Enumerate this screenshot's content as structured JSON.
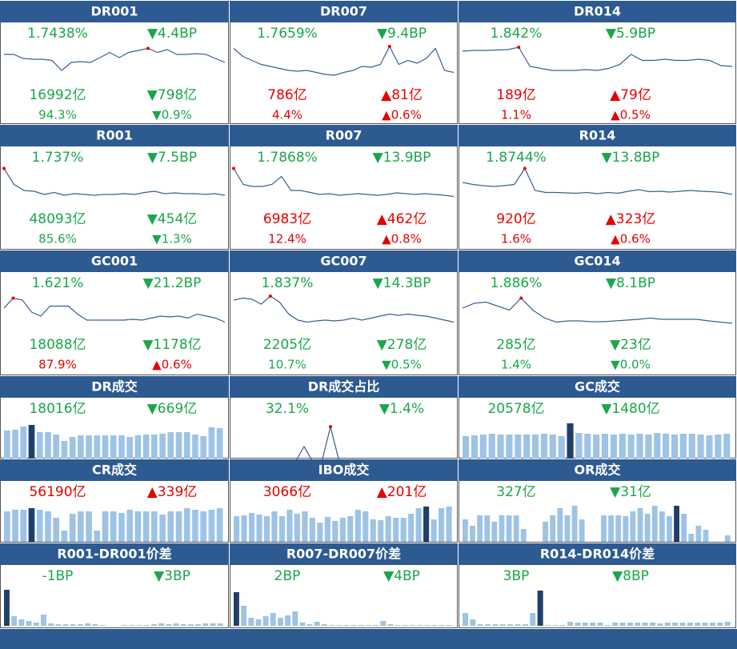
{
  "panels": [
    {
      "title": "DR001",
      "kind": "line",
      "highlight": 15,
      "stats": [
        {
          "text": "1.7438%",
          "color": "#1aa64a"
        },
        {
          "text": "▼4.4BP",
          "color": "#1aa64a"
        },
        {
          "text": "16992亿",
          "color": "#1aa64a"
        },
        {
          "text": "▼798亿",
          "color": "#1aa64a"
        },
        {
          "text": "94.3%",
          "color": "#1aa64a"
        },
        {
          "text": "▼0.9%",
          "color": "#1aa64a"
        }
      ],
      "values": [
        70,
        70,
        60,
        58,
        58,
        55,
        30,
        50,
        52,
        50,
        62,
        75,
        62,
        75,
        80,
        85,
        75,
        82,
        70,
        70,
        72,
        70,
        60,
        50
      ]
    },
    {
      "title": "DR007",
      "kind": "line",
      "highlight": 17,
      "stats": [
        {
          "text": "1.7659%",
          "color": "#1aa64a"
        },
        {
          "text": "▼9.4BP",
          "color": "#1aa64a"
        },
        {
          "text": "786亿",
          "color": "#e60000"
        },
        {
          "text": "▲81亿",
          "color": "#e60000"
        },
        {
          "text": "4.4%",
          "color": "#e60000"
        },
        {
          "text": "▲0.6%",
          "color": "#e60000"
        }
      ],
      "values": [
        85,
        65,
        55,
        45,
        40,
        35,
        30,
        28,
        30,
        25,
        20,
        18,
        25,
        30,
        40,
        38,
        45,
        90,
        45,
        55,
        48,
        60,
        85,
        30,
        25
      ]
    },
    {
      "title": "DR014",
      "kind": "line",
      "highlight": 5,
      "stats": [
        {
          "text": "1.842%",
          "color": "#1aa64a"
        },
        {
          "text": "▼5.9BP",
          "color": "#1aa64a"
        },
        {
          "text": "189亿",
          "color": "#e60000"
        },
        {
          "text": "▲79亿",
          "color": "#e60000"
        },
        {
          "text": "1.1%",
          "color": "#e60000"
        },
        {
          "text": "▲0.5%",
          "color": "#e60000"
        }
      ],
      "values": [
        78,
        80,
        80,
        81,
        82,
        88,
        40,
        35,
        30,
        30,
        30,
        32,
        30,
        35,
        45,
        70,
        55,
        55,
        58,
        55,
        55,
        58,
        55,
        42,
        40
      ]
    },
    {
      "title": "R001",
      "kind": "line",
      "highlight": 0,
      "stats": [
        {
          "text": "1.737%",
          "color": "#1aa64a"
        },
        {
          "text": "▼7.5BP",
          "color": "#1aa64a"
        },
        {
          "text": "48093亿",
          "color": "#1aa64a"
        },
        {
          "text": "▼454亿",
          "color": "#1aa64a"
        },
        {
          "text": "85.6%",
          "color": "#1aa64a"
        },
        {
          "text": "▼1.3%",
          "color": "#1aa64a"
        }
      ],
      "values": [
        95,
        55,
        40,
        38,
        30,
        35,
        28,
        32,
        30,
        28,
        30,
        30,
        32,
        30,
        35,
        38,
        32,
        34,
        32,
        32,
        30,
        32,
        28
      ]
    },
    {
      "title": "R007",
      "kind": "line",
      "highlight": 0,
      "stats": [
        {
          "text": "1.7868%",
          "color": "#1aa64a"
        },
        {
          "text": "▼13.9BP",
          "color": "#1aa64a"
        },
        {
          "text": "6983亿",
          "color": "#e60000"
        },
        {
          "text": "▲462亿",
          "color": "#e60000"
        },
        {
          "text": "12.4%",
          "color": "#e60000"
        },
        {
          "text": "▲0.8%",
          "color": "#e60000"
        }
      ],
      "values": [
        95,
        55,
        50,
        50,
        55,
        75,
        40,
        40,
        35,
        30,
        32,
        28,
        30,
        32,
        30,
        28,
        30,
        34,
        32,
        30,
        32,
        30,
        28,
        25
      ]
    },
    {
      "title": "R014",
      "kind": "line",
      "highlight": 6,
      "stats": [
        {
          "text": "1.8744%",
          "color": "#1aa64a"
        },
        {
          "text": "▼13.8BP",
          "color": "#1aa64a"
        },
        {
          "text": "920亿",
          "color": "#e60000"
        },
        {
          "text": "▲323亿",
          "color": "#e60000"
        },
        {
          "text": "1.6%",
          "color": "#e60000"
        },
        {
          "text": "▲0.6%",
          "color": "#e60000"
        }
      ],
      "values": [
        60,
        55,
        52,
        50,
        52,
        55,
        95,
        40,
        35,
        35,
        34,
        33,
        35,
        32,
        35,
        33,
        38,
        42,
        37,
        38,
        36,
        38,
        40,
        38,
        37,
        35,
        30
      ]
    },
    {
      "title": "GC001",
      "kind": "line",
      "highlight": 1,
      "stats": [
        {
          "text": "1.621%",
          "color": "#1aa64a"
        },
        {
          "text": "▼21.2BP",
          "color": "#1aa64a"
        },
        {
          "text": "18088亿",
          "color": "#1aa64a"
        },
        {
          "text": "▼1178亿",
          "color": "#1aa64a"
        },
        {
          "text": "87.9%",
          "color": "#e60000"
        },
        {
          "text": "▲0.6%",
          "color": "#e60000"
        }
      ],
      "values": [
        60,
        85,
        80,
        50,
        40,
        65,
        65,
        65,
        45,
        30,
        30,
        30,
        30,
        30,
        32,
        30,
        35,
        40,
        38,
        40,
        35,
        45,
        40,
        35,
        25
      ]
    },
    {
      "title": "GC007",
      "kind": "line",
      "highlight": 4,
      "stats": [
        {
          "text": "1.837%",
          "color": "#1aa64a"
        },
        {
          "text": "▼14.3BP",
          "color": "#1aa64a"
        },
        {
          "text": "2205亿",
          "color": "#1aa64a"
        },
        {
          "text": "▼278亿",
          "color": "#1aa64a"
        },
        {
          "text": "10.7%",
          "color": "#1aa64a"
        },
        {
          "text": "▼0.5%",
          "color": "#1aa64a"
        }
      ],
      "values": [
        80,
        85,
        82,
        70,
        90,
        75,
        45,
        30,
        25,
        28,
        30,
        28,
        30,
        35,
        30,
        35,
        40,
        45,
        42,
        45,
        42,
        40,
        35,
        30,
        25
      ]
    },
    {
      "title": "GC014",
      "kind": "line",
      "highlight": 5,
      "stats": [
        {
          "text": "1.886%",
          "color": "#1aa64a"
        },
        {
          "text": "▼8.1BP",
          "color": "#1aa64a"
        },
        {
          "text": "285亿",
          "color": "#1aa64a"
        },
        {
          "text": "▼23亿",
          "color": "#1aa64a"
        },
        {
          "text": "1.4%",
          "color": "#1aa64a"
        },
        {
          "text": "▼0.0%",
          "color": "#1aa64a"
        }
      ],
      "values": [
        60,
        72,
        75,
        65,
        55,
        85,
        55,
        35,
        25,
        28,
        28,
        26,
        26,
        28,
        30,
        32,
        35,
        32,
        32,
        32,
        32,
        28,
        25,
        22
      ]
    },
    {
      "title": "DR成交",
      "kind": "bar",
      "highlight": 3,
      "stats": [
        {
          "text": "18016亿",
          "color": "#1aa64a"
        },
        {
          "text": "▼669亿",
          "color": "#1aa64a"
        }
      ],
      "values": [
        35,
        36,
        40,
        42,
        33,
        33,
        30,
        22,
        27,
        29,
        29,
        29,
        29,
        29,
        29,
        27,
        29,
        30,
        30,
        31,
        33,
        33,
        33,
        30,
        28,
        39,
        38
      ]
    },
    {
      "title": "DR成交占比",
      "kind": "line",
      "highlight": 11,
      "stats": [
        {
          "text": "32.1%",
          "color": "#1aa64a"
        },
        {
          "text": "▼1.4%",
          "color": "#1aa64a"
        }
      ],
      "values": [
        5,
        5,
        3,
        3,
        5,
        5,
        4,
        5,
        40,
        5,
        5,
        85,
        5,
        3,
        3,
        3,
        3,
        3,
        4,
        3,
        3,
        4,
        5,
        3,
        5,
        5
      ]
    },
    {
      "title": "GC成交",
      "kind": "bar",
      "highlight": 12,
      "stats": [
        {
          "text": "20578亿",
          "color": "#1aa64a"
        },
        {
          "text": "▼1480亿",
          "color": "#1aa64a"
        }
      ],
      "values": [
        28,
        29,
        30,
        31,
        30,
        30,
        30,
        30,
        30,
        31,
        30,
        28,
        44,
        32,
        31,
        30,
        31,
        30,
        31,
        30,
        31,
        30,
        32,
        31,
        30,
        31,
        31,
        30,
        29,
        30,
        31
      ]
    },
    {
      "title": "CR成交",
      "kind": "bar",
      "highlight": 3,
      "stats": [
        {
          "text": "56190亿",
          "color": "#e60000"
        },
        {
          "text": "▲339亿",
          "color": "#e60000"
        }
      ],
      "values": [
        38,
        40,
        40,
        42,
        40,
        38,
        30,
        14,
        35,
        38,
        38,
        14,
        38,
        38,
        36,
        40,
        38,
        38,
        38,
        34,
        38,
        38,
        42,
        40,
        38,
        40,
        42
      ]
    },
    {
      "title": "IBO成交",
      "kind": "bar",
      "highlight": 25,
      "stats": [
        {
          "text": "3066亿",
          "color": "#e60000"
        },
        {
          "text": "▲201亿",
          "color": "#e60000"
        }
      ],
      "values": [
        32,
        33,
        36,
        34,
        32,
        38,
        32,
        40,
        35,
        38,
        30,
        24,
        31,
        26,
        30,
        32,
        40,
        38,
        28,
        27,
        32,
        30,
        30,
        35,
        42,
        44,
        28,
        42,
        44
      ]
    },
    {
      "title": "OR成交",
      "kind": "bar",
      "highlight": 29,
      "stats": [
        {
          "text": "327亿",
          "color": "#1aa64a"
        },
        {
          "text": "▼31亿",
          "color": "#1aa64a"
        }
      ],
      "values": [
        28,
        20,
        33,
        33,
        25,
        33,
        33,
        33,
        16,
        0,
        0,
        25,
        33,
        42,
        33,
        45,
        28,
        0,
        0,
        33,
        33,
        33,
        32,
        38,
        42,
        35,
        45,
        38,
        32,
        45,
        35,
        10,
        20,
        15,
        0,
        0,
        8
      ]
    },
    {
      "title": "R001-DR001价差",
      "kind": "bar",
      "highlight": 0,
      "stats": [
        {
          "text": "-1BP",
          "color": "#1aa64a"
        },
        {
          "text": "▼3BP",
          "color": "#1aa64a"
        }
      ],
      "values": [
        45,
        12,
        8,
        6,
        4,
        14,
        3,
        2,
        2,
        2,
        2,
        3,
        2,
        1,
        0,
        0,
        1,
        1,
        1,
        1,
        2,
        3,
        2,
        3,
        2,
        2,
        2,
        3,
        3,
        3
      ]
    },
    {
      "title": "R007-DR007价差",
      "kind": "bar",
      "highlight": 0,
      "stats": [
        {
          "text": "2BP",
          "color": "#1aa64a"
        },
        {
          "text": "▼4BP",
          "color": "#1aa64a"
        }
      ],
      "values": [
        42,
        25,
        10,
        8,
        12,
        16,
        10,
        13,
        18,
        4,
        2,
        5,
        2,
        1,
        1,
        1,
        1,
        1,
        1,
        1,
        6,
        2,
        1,
        1,
        1,
        1,
        1,
        1,
        1,
        1
      ]
    },
    {
      "title": "R014-DR014价差",
      "kind": "bar",
      "highlight": 10,
      "stats": [
        {
          "text": "3BP",
          "color": "#1aa64a"
        },
        {
          "text": "▼8BP",
          "color": "#1aa64a"
        }
      ],
      "values": [
        16,
        8,
        2,
        2,
        2,
        2,
        2,
        2,
        2,
        16,
        44,
        1,
        1,
        1,
        5,
        4,
        4,
        4,
        4,
        1,
        4,
        4,
        4,
        4,
        4,
        4,
        3,
        4,
        4,
        4,
        4,
        4,
        4,
        4,
        4,
        5
      ]
    }
  ]
}
